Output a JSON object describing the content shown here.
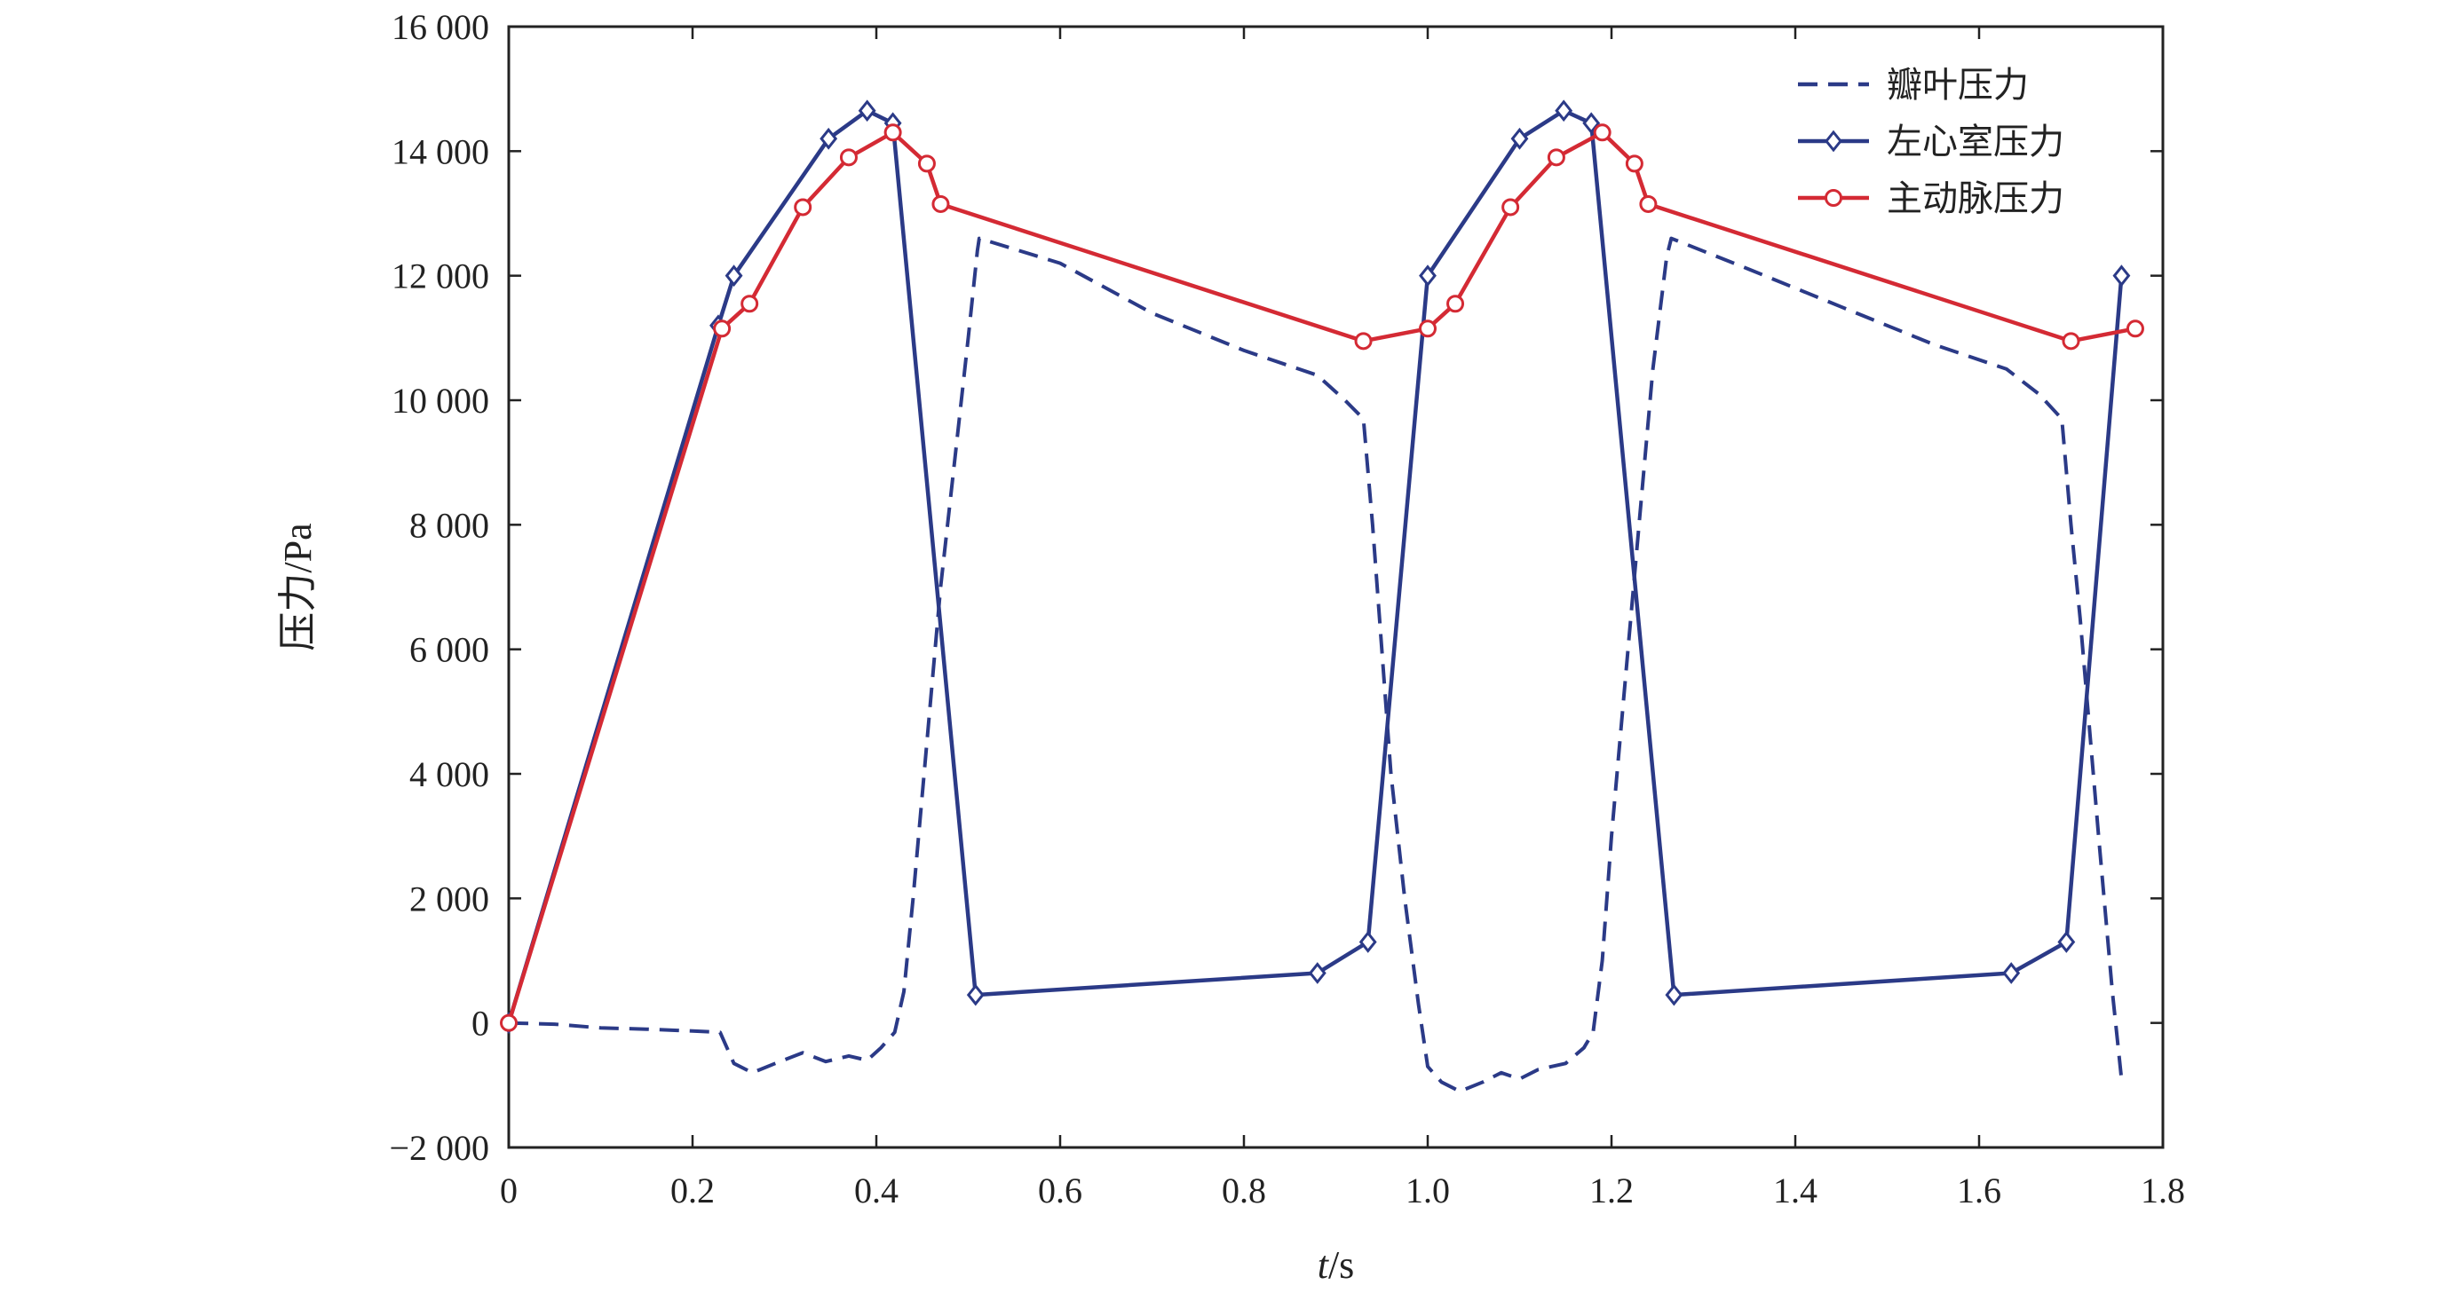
{
  "chart_data": {
    "type": "line",
    "title": "",
    "xlabel_italic": "t",
    "xlabel_rest": "/s",
    "ylabel": "压力/Pa",
    "xlim": [
      0,
      1.8
    ],
    "ylim": [
      -2000,
      16000
    ],
    "x_ticks": [
      {
        "value": 0,
        "label": "0"
      },
      {
        "value": 0.2,
        "label": "0.2"
      },
      {
        "value": 0.4,
        "label": "0.4"
      },
      {
        "value": 0.6,
        "label": "0.6"
      },
      {
        "value": 0.8,
        "label": "0.8"
      },
      {
        "value": 1.0,
        "label": "1.0"
      },
      {
        "value": 1.2,
        "label": "1.2"
      },
      {
        "value": 1.4,
        "label": "1.4"
      },
      {
        "value": 1.6,
        "label": "1.6"
      },
      {
        "value": 1.8,
        "label": "1.8"
      }
    ],
    "y_ticks": [
      {
        "value": -2000,
        "label": "−2 000"
      },
      {
        "value": 0,
        "label": "0"
      },
      {
        "value": 2000,
        "label": "2 000"
      },
      {
        "value": 4000,
        "label": "4 000"
      },
      {
        "value": 6000,
        "label": "6 000"
      },
      {
        "value": 8000,
        "label": "8 000"
      },
      {
        "value": 10000,
        "label": "10 000"
      },
      {
        "value": 12000,
        "label": "12 000"
      },
      {
        "value": 14000,
        "label": "14 000"
      },
      {
        "value": 16000,
        "label": "16 000"
      }
    ],
    "grid": false,
    "legend_position": "top-right",
    "series": [
      {
        "name": "瓣叶压力",
        "color": "#2b3a87",
        "style": "dashed",
        "marker": "none",
        "points": [
          [
            0,
            0
          ],
          [
            0.05,
            -20
          ],
          [
            0.1,
            -80
          ],
          [
            0.15,
            -100
          ],
          [
            0.2,
            -130
          ],
          [
            0.23,
            -150
          ],
          [
            0.245,
            -650
          ],
          [
            0.265,
            -800
          ],
          [
            0.29,
            -650
          ],
          [
            0.32,
            -480
          ],
          [
            0.345,
            -620
          ],
          [
            0.37,
            -530
          ],
          [
            0.39,
            -600
          ],
          [
            0.405,
            -400
          ],
          [
            0.42,
            -150
          ],
          [
            0.43,
            500
          ],
          [
            0.44,
            2000
          ],
          [
            0.455,
            4500
          ],
          [
            0.47,
            7000
          ],
          [
            0.485,
            9000
          ],
          [
            0.5,
            11000
          ],
          [
            0.51,
            12400
          ],
          [
            0.512,
            12600
          ],
          [
            0.6,
            12200
          ],
          [
            0.7,
            11400
          ],
          [
            0.8,
            10800
          ],
          [
            0.88,
            10400
          ],
          [
            0.91,
            10000
          ],
          [
            0.93,
            9700
          ],
          [
            0.94,
            8000
          ],
          [
            0.95,
            6000
          ],
          [
            0.96,
            4000
          ],
          [
            0.975,
            2000
          ],
          [
            0.99,
            300
          ],
          [
            1.0,
            -700
          ],
          [
            1.015,
            -950
          ],
          [
            1.035,
            -1100
          ],
          [
            1.06,
            -950
          ],
          [
            1.08,
            -800
          ],
          [
            1.1,
            -900
          ],
          [
            1.12,
            -750
          ],
          [
            1.15,
            -650
          ],
          [
            1.17,
            -400
          ],
          [
            1.18,
            -150
          ],
          [
            1.19,
            1000
          ],
          [
            1.2,
            3000
          ],
          [
            1.215,
            5500
          ],
          [
            1.23,
            8000
          ],
          [
            1.245,
            10500
          ],
          [
            1.26,
            12300
          ],
          [
            1.265,
            12600
          ],
          [
            1.35,
            12100
          ],
          [
            1.45,
            11500
          ],
          [
            1.55,
            10900
          ],
          [
            1.63,
            10500
          ],
          [
            1.665,
            10100
          ],
          [
            1.69,
            9700
          ],
          [
            1.7,
            8000
          ],
          [
            1.71,
            6500
          ],
          [
            1.73,
            3000
          ],
          [
            1.745,
            500
          ],
          [
            1.755,
            -900
          ]
        ]
      },
      {
        "name": "左心室压力",
        "color": "#2b3a87",
        "style": "solid",
        "marker": "diamond",
        "points": [
          [
            0,
            0
          ],
          [
            0.228,
            11200
          ],
          [
            0.245,
            12000
          ],
          [
            0.348,
            14200
          ],
          [
            0.39,
            14650
          ],
          [
            0.418,
            14450
          ],
          [
            0.508,
            450
          ],
          [
            0.88,
            800
          ],
          [
            0.935,
            1300
          ],
          [
            1.0,
            12000
          ],
          [
            1.1,
            14200
          ],
          [
            1.148,
            14650
          ],
          [
            1.178,
            14450
          ],
          [
            1.268,
            450
          ],
          [
            1.635,
            800
          ],
          [
            1.695,
            1300
          ],
          [
            1.755,
            12000
          ]
        ]
      },
      {
        "name": "主动脉压力",
        "color": "#d42a34",
        "style": "solid",
        "marker": "circle",
        "points": [
          [
            0,
            0
          ],
          [
            0.232,
            11150
          ],
          [
            0.262,
            11550
          ],
          [
            0.32,
            13100
          ],
          [
            0.37,
            13900
          ],
          [
            0.418,
            14300
          ],
          [
            0.455,
            13800
          ],
          [
            0.47,
            13150
          ],
          [
            0.93,
            10950
          ],
          [
            1.0,
            11150
          ],
          [
            1.03,
            11550
          ],
          [
            1.09,
            13100
          ],
          [
            1.14,
            13900
          ],
          [
            1.19,
            14300
          ],
          [
            1.225,
            13800
          ],
          [
            1.24,
            13150
          ],
          [
            1.7,
            10950
          ],
          [
            1.77,
            11150
          ]
        ]
      }
    ]
  }
}
